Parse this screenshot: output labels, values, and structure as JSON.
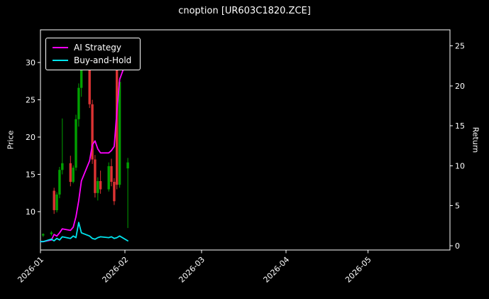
{
  "title": "cnoption [UR603C1820.ZCE]",
  "colors": {
    "background": "#000000",
    "text": "#ffffff",
    "spine": "#ffffff",
    "candle_up": "#00a000",
    "candle_down": "#dd3333"
  },
  "legend": {
    "position": "upper-left",
    "items": [
      "AI Strategy",
      "Buy-and-Hold"
    ]
  },
  "chart_data": {
    "type": "candlestick+line",
    "title": "cnoption [UR603C1820.ZCE]",
    "grid": false,
    "legend_position": "upper-left",
    "x_axis": {
      "unit": "days-from-2026-01-01",
      "domain_days": [
        0,
        150
      ],
      "ticks": [
        {
          "day": 0,
          "label": "2026-01"
        },
        {
          "day": 31,
          "label": "2026-02"
        },
        {
          "day": 59,
          "label": "2026-03"
        },
        {
          "day": 90,
          "label": "2026-04"
        },
        {
          "day": 120,
          "label": "2026-05"
        }
      ]
    },
    "price_axis": {
      "label": "Price",
      "side": "left",
      "ticks": [
        10,
        15,
        20,
        25,
        30
      ],
      "range": [
        4.86,
        34.38
      ]
    },
    "return_axis": {
      "label": "Return",
      "side": "right",
      "ticks": [
        0,
        5,
        10,
        15,
        20,
        25
      ],
      "range": [
        -0.55,
        27.0
      ]
    },
    "candles_format": [
      "day",
      "open",
      "high",
      "low",
      "close"
    ],
    "candles": [
      [
        1,
        6.8,
        7.1,
        6.6,
        7.0
      ],
      [
        4,
        7.0,
        7.4,
        6.8,
        7.2
      ],
      [
        5,
        12.8,
        13.2,
        9.7,
        10.2
      ],
      [
        6,
        10.2,
        12.6,
        9.9,
        12.3
      ],
      [
        7,
        12.3,
        16.0,
        11.8,
        15.6
      ],
      [
        8,
        15.6,
        22.5,
        15.0,
        16.5
      ],
      [
        11,
        16.5,
        17.5,
        13.4,
        14.0
      ],
      [
        12,
        14.0,
        16.2,
        13.8,
        15.9
      ],
      [
        13,
        15.9,
        23.0,
        15.5,
        22.4
      ],
      [
        14,
        22.4,
        27.2,
        21.4,
        26.6
      ],
      [
        15,
        26.6,
        32.5,
        25.4,
        31.4
      ],
      [
        18,
        31.4,
        31.8,
        23.9,
        24.4
      ],
      [
        19,
        24.4,
        25.0,
        16.4,
        17.0
      ],
      [
        20,
        17.0,
        17.6,
        11.9,
        12.5
      ],
      [
        21,
        12.5,
        14.6,
        11.5,
        14.1
      ],
      [
        22,
        14.1,
        15.5,
        12.4,
        13.0
      ],
      [
        25,
        13.0,
        16.6,
        12.7,
        16.1
      ],
      [
        26,
        16.1,
        17.1,
        13.4,
        14.0
      ],
      [
        27,
        14.0,
        14.5,
        10.9,
        11.4
      ],
      [
        28,
        29.8,
        30.5,
        13.0,
        13.6
      ],
      [
        29,
        13.6,
        28.0,
        13.2,
        27.4
      ],
      [
        32,
        15.8,
        17.2,
        7.8,
        16.6
      ]
    ],
    "series": [
      {
        "name": "AI Strategy",
        "axis": "return",
        "color": "#ff00ff",
        "points": [
          [
            0,
            0.5
          ],
          [
            1,
            0.5
          ],
          [
            4,
            0.7
          ],
          [
            5,
            1.4
          ],
          [
            6,
            1.2
          ],
          [
            7,
            1.6
          ],
          [
            8,
            2.1
          ],
          [
            11,
            1.9
          ],
          [
            12,
            2.3
          ],
          [
            13,
            3.6
          ],
          [
            14,
            5.6
          ],
          [
            15,
            8.1
          ],
          [
            18,
            10.6
          ],
          [
            19,
            12.6
          ],
          [
            20,
            13.1
          ],
          [
            21,
            12.1
          ],
          [
            22,
            11.6
          ],
          [
            25,
            11.6
          ],
          [
            26,
            11.9
          ],
          [
            27,
            12.4
          ],
          [
            28,
            16.8
          ],
          [
            29,
            20.8
          ],
          [
            32,
            23.6
          ]
        ]
      },
      {
        "name": "Buy-and-Hold",
        "axis": "return",
        "color": "#00e5ee",
        "points": [
          [
            0,
            0.5
          ],
          [
            1,
            0.5
          ],
          [
            4,
            0.8
          ],
          [
            5,
            0.6
          ],
          [
            6,
            0.9
          ],
          [
            7,
            0.7
          ],
          [
            8,
            1.1
          ],
          [
            11,
            0.9
          ],
          [
            12,
            1.2
          ],
          [
            13,
            1.0
          ],
          [
            14,
            2.9
          ],
          [
            15,
            1.6
          ],
          [
            18,
            1.2
          ],
          [
            19,
            0.9
          ],
          [
            20,
            0.8
          ],
          [
            21,
            1.0
          ],
          [
            22,
            1.1
          ],
          [
            25,
            1.0
          ],
          [
            26,
            1.1
          ],
          [
            27,
            0.9
          ],
          [
            28,
            1.0
          ],
          [
            29,
            1.2
          ],
          [
            32,
            0.6
          ]
        ]
      }
    ]
  }
}
